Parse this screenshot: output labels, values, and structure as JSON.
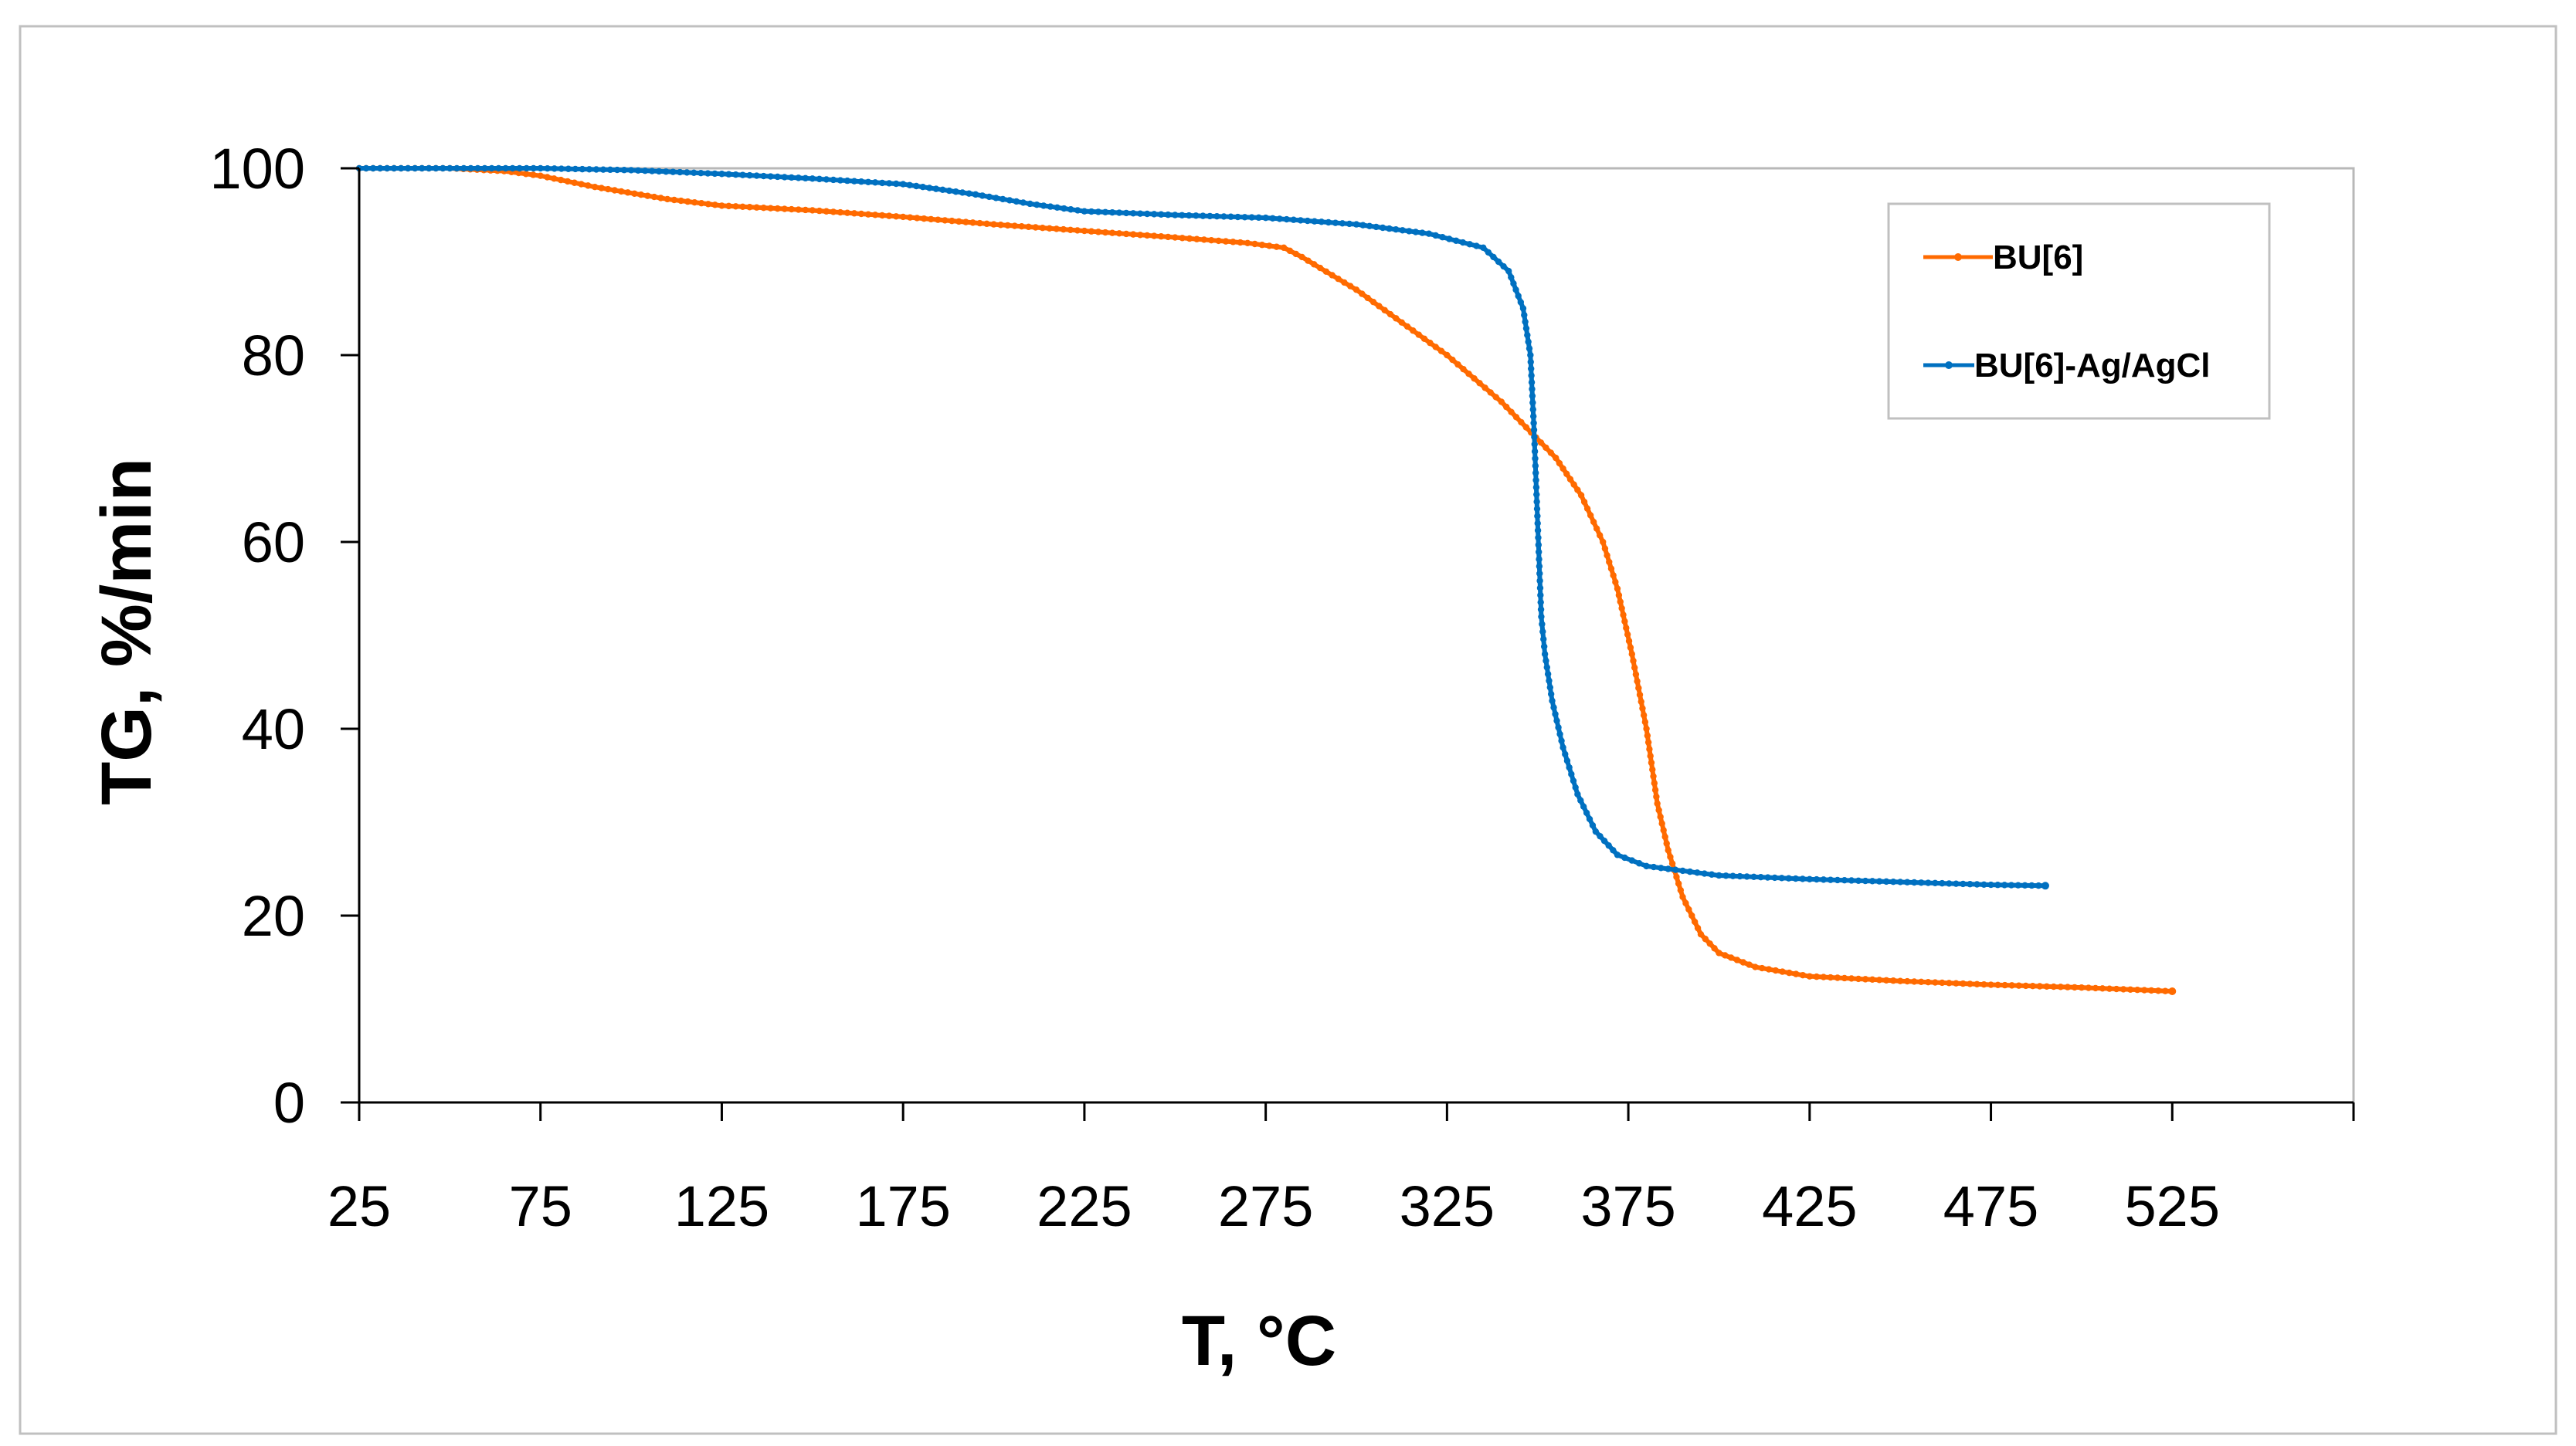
{
  "chart_data": {
    "type": "line",
    "title": "",
    "xlabel": "T, °C",
    "ylabel": "TG, %/min",
    "xlim": [
      25,
      575
    ],
    "ylim": [
      0,
      100
    ],
    "x_ticks": [
      25,
      75,
      125,
      175,
      225,
      275,
      325,
      375,
      425,
      475,
      525
    ],
    "y_ticks": [
      0,
      20,
      40,
      60,
      80,
      100
    ],
    "grid": false,
    "legend_position": "top-right",
    "series": [
      {
        "name": "BU[6]",
        "color": "#FF6A00",
        "points": [
          [
            25,
            100
          ],
          [
            50,
            100
          ],
          [
            65,
            99.7
          ],
          [
            75,
            99.2
          ],
          [
            90,
            98
          ],
          [
            110,
            96.7
          ],
          [
            125,
            96
          ],
          [
            150,
            95.5
          ],
          [
            175,
            94.8
          ],
          [
            200,
            94
          ],
          [
            225,
            93.3
          ],
          [
            250,
            92.6
          ],
          [
            270,
            92
          ],
          [
            280,
            91.5
          ],
          [
            285,
            90.5
          ],
          [
            300,
            87
          ],
          [
            325,
            80
          ],
          [
            340,
            75
          ],
          [
            355,
            69
          ],
          [
            362,
            65
          ],
          [
            368,
            60
          ],
          [
            372,
            55
          ],
          [
            376,
            48
          ],
          [
            380,
            40
          ],
          [
            383,
            32
          ],
          [
            386,
            27
          ],
          [
            390,
            22
          ],
          [
            395,
            18
          ],
          [
            400,
            16
          ],
          [
            410,
            14.5
          ],
          [
            425,
            13.5
          ],
          [
            450,
            13
          ],
          [
            475,
            12.6
          ],
          [
            500,
            12.3
          ],
          [
            525,
            11.9
          ]
        ]
      },
      {
        "name": "BU[6]-Ag/AgCl",
        "color": "#0070C0",
        "points": [
          [
            25,
            100
          ],
          [
            50,
            100
          ],
          [
            75,
            100
          ],
          [
            100,
            99.8
          ],
          [
            125,
            99.4
          ],
          [
            150,
            98.9
          ],
          [
            175,
            98.3
          ],
          [
            195,
            97.2
          ],
          [
            210,
            96.2
          ],
          [
            225,
            95.4
          ],
          [
            250,
            95
          ],
          [
            275,
            94.7
          ],
          [
            300,
            94
          ],
          [
            320,
            93
          ],
          [
            335,
            91.5
          ],
          [
            342,
            89
          ],
          [
            346,
            85
          ],
          [
            348,
            80
          ],
          [
            349,
            72
          ],
          [
            350,
            62
          ],
          [
            351,
            52
          ],
          [
            352,
            48
          ],
          [
            354,
            43
          ],
          [
            357,
            38
          ],
          [
            361,
            33
          ],
          [
            366,
            29
          ],
          [
            372,
            26.5
          ],
          [
            380,
            25.3
          ],
          [
            390,
            24.8
          ],
          [
            400,
            24.3
          ],
          [
            425,
            23.9
          ],
          [
            450,
            23.6
          ],
          [
            475,
            23.3
          ],
          [
            490,
            23.2
          ]
        ]
      }
    ]
  }
}
